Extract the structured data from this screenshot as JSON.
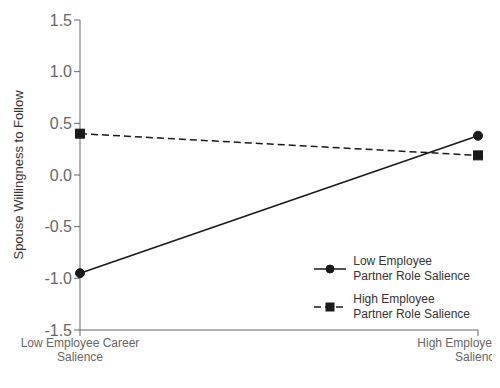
{
  "chart_data": {
    "type": "line",
    "categories": [
      "Low Employee Career\nSalience",
      "High Employee Career\nSalience"
    ],
    "series": [
      {
        "name": "Low Employee\nPartner Role Salience",
        "color": "#1a1a1a",
        "values": [
          -0.95,
          0.38
        ],
        "marker": "circle",
        "line_style": "solid"
      },
      {
        "name": "High Employee\nPartner Role Salience",
        "color": "#1a1a1a",
        "values": [
          0.4,
          0.19
        ],
        "marker": "square",
        "line_style": "dashed"
      }
    ],
    "ylabel": "Spouse Willingness to Follow",
    "ylim": [
      -1.5,
      1.5
    ],
    "yticks": [
      -1.5,
      {
        "value": -1,
        "label": "-1.0"
      },
      -0.5,
      {
        "value": 0,
        "label": "0.0"
      },
      0.5,
      {
        "value": 1,
        "label": "1.0"
      },
      1.5
    ],
    "legend": "lower right",
    "grid": false
  }
}
